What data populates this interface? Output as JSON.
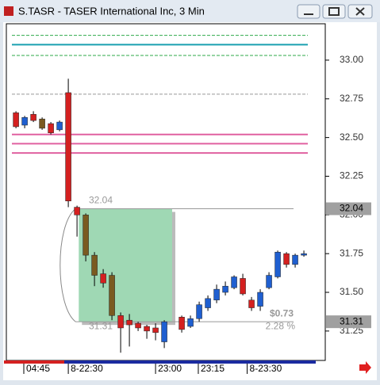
{
  "chart_data": {
    "type": "candlestick",
    "title": "S.TASR - TASER International Inc, 3 Min",
    "ylim": [
      31.06,
      33.235
    ],
    "yticks": [
      {
        "value": 31.25,
        "label": "31.25"
      },
      {
        "value": 31.5,
        "label": "31.50"
      },
      {
        "value": 31.75,
        "label": "31.75"
      },
      {
        "value": 32,
        "label": "32.00"
      },
      {
        "value": 32.25,
        "label": "32.25"
      },
      {
        "value": 32.5,
        "label": "32.50"
      },
      {
        "value": 32.75,
        "label": "32.75"
      },
      {
        "value": 33,
        "label": "33.00"
      }
    ],
    "xlim": [
      -1.1,
      35.45
    ],
    "xticks": [
      {
        "value": 0.9,
        "label": "04:45"
      },
      {
        "value": 6,
        "label": "8-22:30"
      },
      {
        "value": 16,
        "label": "23:00"
      },
      {
        "value": 20.9,
        "label": "23:15"
      },
      {
        "value": 26.5,
        "label": "8-23:30"
      }
    ],
    "open": [
      32.66,
      32.58,
      32.65,
      32.62,
      32.59,
      32.55,
      32.79,
      32.05,
      32.0,
      31.74,
      31.62,
      31.61,
      31.35,
      31.32,
      31.3,
      31.28,
      31.27,
      31.18,
      null,
      31.34,
      31.28,
      31.33,
      31.4,
      31.45,
      31.5,
      31.53,
      31.59,
      31.45,
      31.41,
      31.53,
      31.6,
      31.75,
      31.68,
      31.74
    ],
    "high": [
      32.67,
      32.64,
      32.67,
      32.63,
      32.6,
      32.61,
      32.88,
      32.06,
      32.01,
      31.76,
      31.65,
      31.63,
      31.37,
      31.36,
      31.31,
      31.29,
      31.3,
      31.32,
      null,
      31.35,
      31.35,
      31.44,
      31.48,
      31.55,
      31.57,
      31.61,
      31.62,
      31.47,
      31.52,
      31.63,
      31.77,
      31.76,
      31.75,
      31.77
    ],
    "low": [
      32.56,
      32.56,
      32.6,
      32.55,
      32.52,
      32.54,
      32.05,
      31.86,
      31.7,
      31.54,
      31.53,
      31.32,
      31.11,
      31.15,
      31.25,
      31.2,
      31.19,
      31.14,
      null,
      31.24,
      31.27,
      31.31,
      31.38,
      31.43,
      31.48,
      31.52,
      31.48,
      31.38,
      31.38,
      31.52,
      31.59,
      31.66,
      31.66,
      31.73
    ],
    "close": [
      32.57,
      32.63,
      32.61,
      32.56,
      32.53,
      32.6,
      32.09,
      32.0,
      31.74,
      31.61,
      31.56,
      31.35,
      31.27,
      31.29,
      31.27,
      31.25,
      31.24,
      31.31,
      null,
      31.26,
      31.33,
      31.42,
      31.46,
      31.52,
      31.54,
      31.6,
      31.49,
      31.4,
      31.5,
      31.61,
      31.76,
      31.68,
      31.74,
      31.75
    ],
    "colors": [
      "#d42020",
      "#1f5fd0",
      "#d42020",
      "#7a5a20",
      "#d42020",
      "#1f5fd0",
      "#d42020",
      "#d42020",
      "#7a5a20",
      "#7a5a20",
      "#d42020",
      "#7a5a20",
      "#d42020",
      "#d42020",
      "#d42020",
      "#d42020",
      "#d42020",
      "#1f5fd0",
      null,
      "#d42020",
      "#1f5fd0",
      "#1f5fd0",
      "#1f5fd0",
      "#1f5fd0",
      "#1f5fd0",
      "#1f5fd0",
      "#d42020",
      "#d42020",
      "#1f5fd0",
      "#1f5fd0",
      "#1f5fd0",
      "#d42020",
      "#1f5fd0",
      "#1f5fd0"
    ],
    "levels": [
      {
        "value": 33.16,
        "color": "#2eaa4a",
        "dash": true
      },
      {
        "value": 33.1,
        "color": "#1aa0b0",
        "dash": false
      },
      {
        "value": 33.03,
        "color": "#2eaa4a",
        "dash": true
      },
      {
        "value": 32.78,
        "color": "#999999",
        "dash": true
      },
      {
        "value": 32.52,
        "color": "#e060a0",
        "dash": false
      },
      {
        "value": 32.46,
        "color": "#e060a0",
        "dash": false
      },
      {
        "value": 32.4,
        "color": "#e060a0",
        "dash": false
      }
    ],
    "markers": [
      {
        "value": 32.04,
        "label": "32.04"
      },
      {
        "value": 31.31,
        "label": "31.31"
      }
    ],
    "range_box": {
      "start": 7.2,
      "end": 17.9,
      "color": "#9fd8b4"
    },
    "change_label": "$0.73",
    "change_pct": "2.28 %"
  }
}
